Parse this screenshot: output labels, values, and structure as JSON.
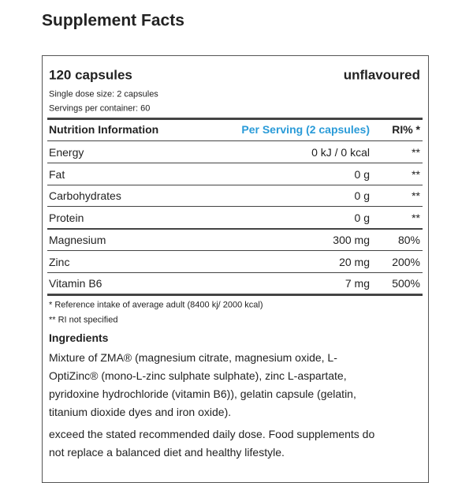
{
  "title": "Supplement Facts",
  "header": {
    "quantity": "120 capsules",
    "flavour": "unflavoured",
    "dose": "Single dose size: 2 capsules",
    "servings": "Servings per container: 60"
  },
  "table": {
    "columns": [
      "Nutrition Information",
      "Per Serving (2 capsules)",
      "RI% *"
    ],
    "rows": [
      [
        "Energy",
        "0 kJ / 0 kcal",
        "**"
      ],
      [
        "Fat",
        "0 g",
        "**"
      ],
      [
        "Carbohydrates",
        "0 g",
        "**"
      ],
      [
        "Protein",
        "0 g",
        "**"
      ],
      [
        "Magnesium",
        "300 mg",
        "80%"
      ],
      [
        "Zinc",
        "20 mg",
        "200%"
      ],
      [
        "Vitamin B6",
        "7 mg",
        "500%"
      ]
    ]
  },
  "footnotes": [
    "* Reference intake of average adult (8400 kj/ 2000 kcal)",
    "** RI not specified"
  ],
  "ingredients": {
    "heading": "Ingredients",
    "lines": [
      "Mixture of ZMA® (magnesium citrate, magnesium oxide, L-",
      "OptiZinc® (mono-L-zinc sulphate sulphate), zinc L-aspartate,",
      "pyridoxine hydrochloride (vitamin B6)), gelatin capsule (gelatin,",
      "titanium dioxide dyes and iron oxide)."
    ],
    "warning": [
      "exceed the stated recommended daily dose. Food supplements do",
      "not replace a balanced diet and healthy lifestyle."
    ]
  }
}
